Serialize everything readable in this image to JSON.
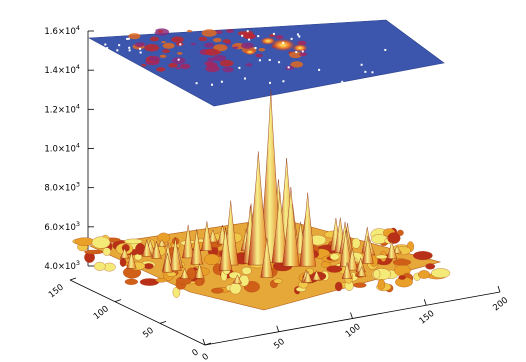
{
  "chart_data": {
    "type": "surface",
    "title": "",
    "xlabel": "",
    "ylabel": "",
    "zlabel": "",
    "x_range": [
      0,
      200
    ],
    "y_range": [
      0,
      150
    ],
    "z_range": [
      4000,
      16000
    ],
    "z_ticks": [
      {
        "mantissa": "4.0",
        "exp": "3"
      },
      {
        "mantissa": "6.0",
        "exp": "3"
      },
      {
        "mantissa": "8.0",
        "exp": "3"
      },
      {
        "mantissa": "1.0",
        "exp": "4"
      },
      {
        "mantissa": "1.2",
        "exp": "4"
      },
      {
        "mantissa": "1.4",
        "exp": "4"
      },
      {
        "mantissa": "1.6",
        "exp": "4"
      }
    ],
    "x_ticks": [
      "0",
      "50",
      "100",
      "150",
      "200"
    ],
    "y_ticks": [
      "0",
      "50",
      "100",
      "150"
    ],
    "z_tick_prefix": "×10",
    "surface_peak": {
      "x": 85,
      "y": 75,
      "z": 12800
    },
    "projection_plane_z": 15000,
    "colors": {
      "surface_low": "#a02010",
      "surface_mid": "#e8a020",
      "surface_high": "#f2f27a",
      "projection_bg": "#3c56ad",
      "projection_hot": "#ffe04a"
    },
    "grid": false
  }
}
